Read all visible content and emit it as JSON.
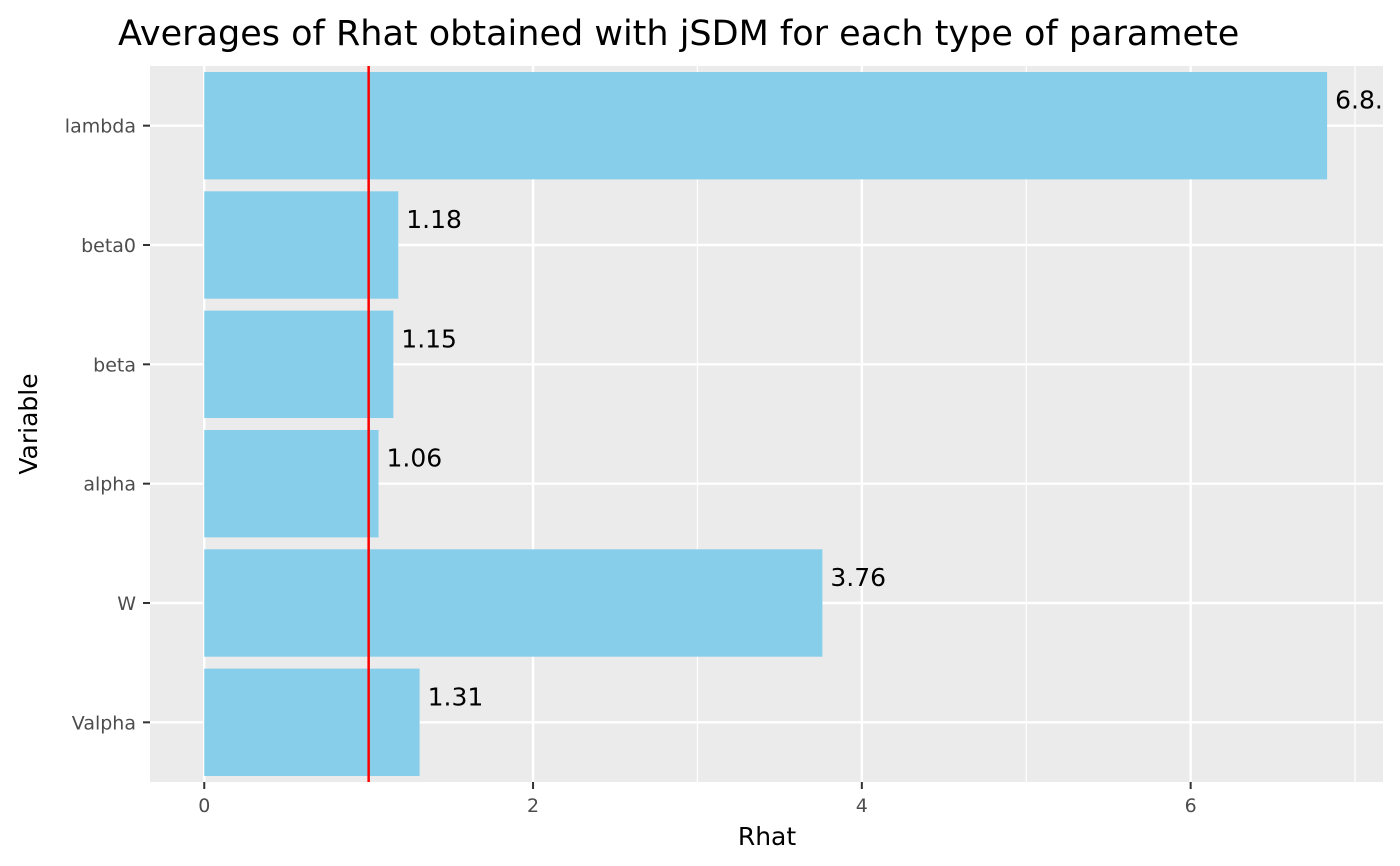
{
  "chart_data": {
    "type": "bar",
    "orientation": "horizontal",
    "title": "Averages of Rhat obtained with jSDM for each type of paramete",
    "xlabel": "Rhat",
    "ylabel": "Variable",
    "categories": [
      "lambda",
      "beta0",
      "beta",
      "alpha",
      "W",
      "Valpha"
    ],
    "values": [
      6.83,
      1.18,
      1.15,
      1.06,
      3.76,
      1.31
    ],
    "data_labels": [
      "6.8.",
      "1.18",
      "1.15",
      "1.06",
      "3.76",
      "1.31"
    ],
    "xlim": [
      -0.33,
      7.17
    ],
    "x_ticks": [
      0,
      2,
      4,
      6
    ],
    "x_tick_labels": [
      "0",
      "2",
      "4",
      "6"
    ],
    "reference_line": {
      "x": 1,
      "color": "#ff0000"
    },
    "bar_color": "#87ceeb",
    "panel_background": "#ebebeb",
    "grid": true
  }
}
